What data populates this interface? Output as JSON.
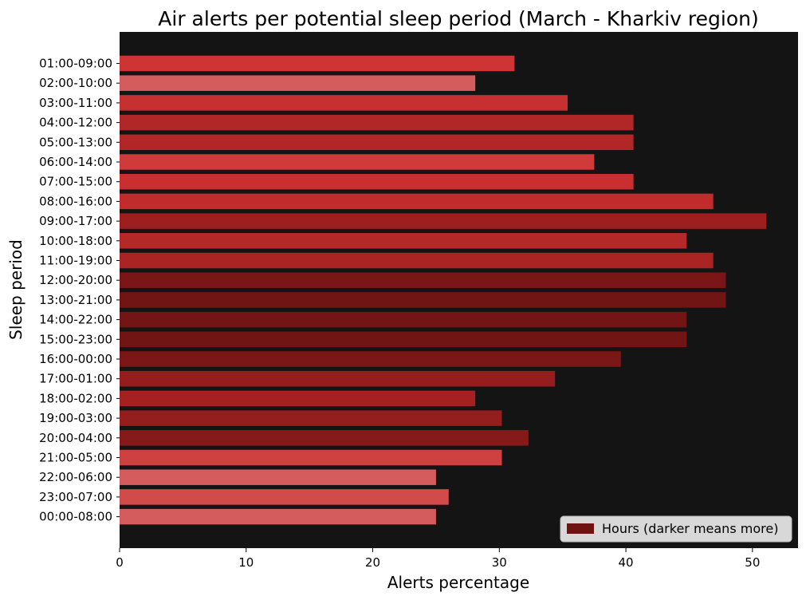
{
  "chart_data": {
    "type": "bar",
    "orientation": "horizontal",
    "title": "Air alerts per potential sleep period (March - Kharkiv region)",
    "xlabel": "Alerts percentage",
    "ylabel": "Sleep period",
    "xlim": [
      0,
      53.6
    ],
    "xticks": [
      0,
      10,
      20,
      30,
      40,
      50
    ],
    "background_color": "#141414",
    "grid": false,
    "legend": {
      "label": "Hours (darker means more)",
      "placement": "bottom-right",
      "color": "#6e1212"
    },
    "categories": [
      "01:00-09:00",
      "02:00-10:00",
      "03:00-11:00",
      "04:00-12:00",
      "05:00-13:00",
      "06:00-14:00",
      "07:00-15:00",
      "08:00-16:00",
      "09:00-17:00",
      "10:00-18:00",
      "11:00-19:00",
      "12:00-20:00",
      "13:00-21:00",
      "14:00-22:00",
      "15:00-23:00",
      "16:00-00:00",
      "17:00-01:00",
      "18:00-02:00",
      "19:00-03:00",
      "20:00-04:00",
      "21:00-05:00",
      "22:00-06:00",
      "23:00-07:00",
      "00:00-08:00"
    ],
    "values": [
      31.2,
      28.1,
      35.4,
      40.6,
      40.6,
      37.5,
      40.6,
      46.9,
      51.1,
      44.8,
      46.9,
      47.9,
      47.9,
      44.8,
      44.8,
      39.6,
      34.4,
      28.1,
      30.2,
      32.3,
      30.2,
      25.0,
      26.0,
      25.0
    ],
    "colors": [
      "#cf3434",
      "#d45c5c",
      "#c73030",
      "#b12727",
      "#b12727",
      "#cf3a3a",
      "#c92f2f",
      "#c12b2b",
      "#9c1e1e",
      "#b52828",
      "#aa2424",
      "#7a1616",
      "#701414",
      "#741515",
      "#701414",
      "#7c1717",
      "#951d1d",
      "#a52121",
      "#941d1d",
      "#861a1a",
      "#cf4141",
      "#d45c5c",
      "#d24b4b",
      "#d45c5c"
    ]
  }
}
